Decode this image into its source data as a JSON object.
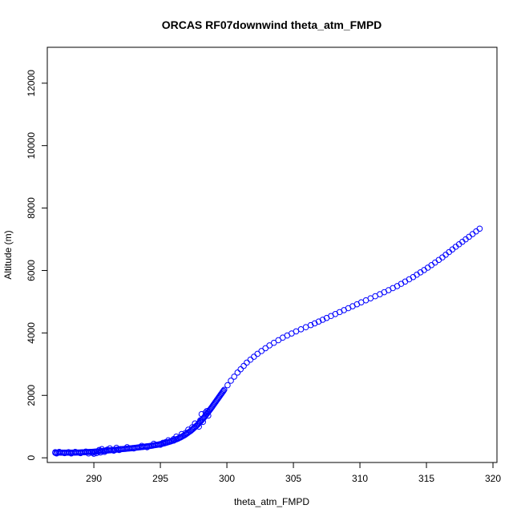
{
  "chart_data": {
    "type": "scatter",
    "title": "ORCAS RF07downwind theta_atm_FMPD",
    "xlabel": "theta_atm_FMPD",
    "ylabel": "Altitude (m)",
    "xlim": [
      286.5,
      320.3
    ],
    "ylim": [
      -150,
      13150
    ],
    "xticks": [
      290,
      295,
      300,
      305,
      310,
      315,
      320
    ],
    "yticks": [
      0,
      2000,
      4000,
      6000,
      8000,
      10000,
      12000
    ],
    "grid": false,
    "legend": "none",
    "marker": "open-circle",
    "color": "#0000ff",
    "profile_points": [
      [
        287.1,
        160
      ],
      [
        287.3,
        170
      ],
      [
        287.6,
        165
      ],
      [
        288.0,
        165
      ],
      [
        288.4,
        165
      ],
      [
        288.9,
        170
      ],
      [
        289.3,
        180
      ],
      [
        289.8,
        190
      ],
      [
        290.3,
        205
      ],
      [
        290.8,
        225
      ],
      [
        291.3,
        245
      ],
      [
        291.8,
        265
      ],
      [
        292.3,
        285
      ],
      [
        292.8,
        305
      ],
      [
        293.3,
        330
      ],
      [
        293.8,
        355
      ],
      [
        294.3,
        385
      ],
      [
        294.8,
        420
      ],
      [
        295.3,
        465
      ],
      [
        295.8,
        530
      ],
      [
        296.3,
        610
      ],
      [
        296.8,
        720
      ],
      [
        297.3,
        870
      ],
      [
        297.8,
        1060
      ],
      [
        298.3,
        1300
      ],
      [
        298.8,
        1580
      ],
      [
        299.3,
        1880
      ],
      [
        299.8,
        2180
      ],
      [
        300.3,
        2470
      ],
      [
        300.8,
        2730
      ],
      [
        301.5,
        3050
      ],
      [
        302.3,
        3330
      ],
      [
        303.2,
        3600
      ],
      [
        304.2,
        3850
      ],
      [
        305.2,
        4050
      ],
      [
        306.3,
        4250
      ],
      [
        307.5,
        4480
      ],
      [
        308.8,
        4730
      ],
      [
        310.1,
        4980
      ],
      [
        311.5,
        5240
      ],
      [
        312.8,
        5500
      ],
      [
        314.0,
        5790
      ],
      [
        315.1,
        6090
      ],
      [
        316.2,
        6420
      ],
      [
        317.2,
        6760
      ],
      [
        318.2,
        7080
      ],
      [
        319.0,
        7340
      ]
    ],
    "scatter_points": [
      [
        287.1,
        180
      ],
      [
        287.2,
        140
      ],
      [
        287.4,
        190
      ],
      [
        287.8,
        150
      ],
      [
        288.1,
        180
      ],
      [
        288.3,
        140
      ],
      [
        288.6,
        190
      ],
      [
        289.0,
        150
      ],
      [
        289.4,
        200
      ],
      [
        289.6,
        140
      ],
      [
        289.9,
        160
      ],
      [
        290.0,
        130
      ],
      [
        290.2,
        150
      ],
      [
        290.4,
        250
      ],
      [
        290.6,
        280
      ],
      [
        290.8,
        190
      ],
      [
        291.0,
        260
      ],
      [
        291.2,
        300
      ],
      [
        291.5,
        230
      ],
      [
        291.7,
        320
      ],
      [
        292.0,
        280
      ],
      [
        292.5,
        340
      ],
      [
        293.0,
        300
      ],
      [
        293.6,
        380
      ],
      [
        294.0,
        340
      ],
      [
        294.5,
        450
      ],
      [
        295.0,
        420
      ],
      [
        295.4,
        500
      ],
      [
        295.6,
        560
      ],
      [
        296.0,
        600
      ],
      [
        296.2,
        680
      ],
      [
        296.5,
        650
      ],
      [
        296.6,
        760
      ],
      [
        296.9,
        800
      ],
      [
        297.1,
        900
      ],
      [
        297.4,
        980
      ],
      [
        297.6,
        1100
      ],
      [
        298.0,
        1200
      ],
      [
        298.1,
        1400
      ],
      [
        298.4,
        1450
      ],
      [
        298.5,
        1500
      ],
      [
        298.6,
        1350
      ],
      [
        298.2,
        1150
      ],
      [
        297.9,
        1000
      ],
      [
        296.0,
        550
      ],
      [
        295.2,
        480
      ],
      [
        291.9,
        250
      ],
      [
        290.5,
        170
      ]
    ]
  }
}
